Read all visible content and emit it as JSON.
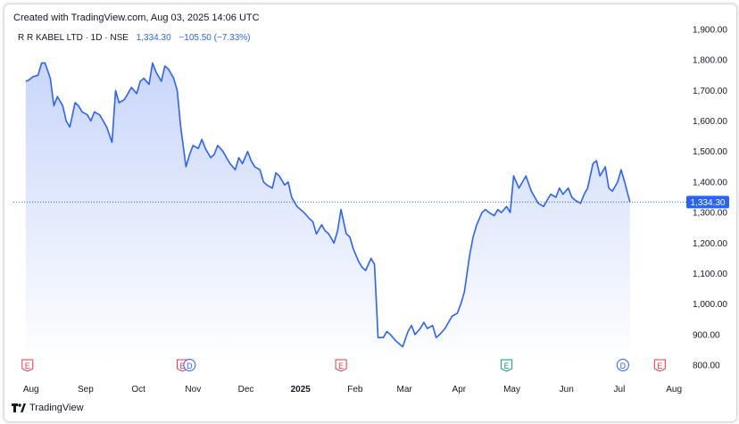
{
  "header": {
    "created_text": "Created with TradingView.com, Aug 03, 2025 14:06 UTC"
  },
  "legend": {
    "symbol": "R R KABEL LTD · 1D · NSE",
    "last": "1,334.30",
    "change": "−105.50 (−7.33%)"
  },
  "footer": {
    "brand": "TradingView"
  },
  "colors": {
    "line": "#2962ff",
    "fill_top": "#c9d6fb",
    "fill_bottom": "#ffffff",
    "price_tag": "#2962ff",
    "event_E_red": "#f23645",
    "event_E_green": "#089981",
    "event_D_blue": "#2962ff",
    "text": "#131722"
  },
  "chart_data": {
    "type": "area",
    "title": "",
    "xlabel": "",
    "ylabel": "",
    "ylim": [
      800,
      1900
    ],
    "y_ticks": [
      "1,900.00",
      "1,800.00",
      "1,700.00",
      "1,600.00",
      "1,500.00",
      "1,400.00",
      "1,300.00",
      "1,200.00",
      "1,100.00",
      "1,000.00",
      "900.00",
      "800.00"
    ],
    "x_ticks": [
      "Aug",
      "Sep",
      "Oct",
      "Nov",
      "Dec",
      "2025",
      "Feb",
      "Mar",
      "Apr",
      "May",
      "Jun",
      "Jul",
      "Aug"
    ],
    "x_ticks_dates": [
      "2024-08-01",
      "2024-09-01",
      "2024-10-01",
      "2024-11-01",
      "2024-12-01",
      "2025-01-01",
      "2025-02-01",
      "2025-03-01",
      "2025-04-01",
      "2025-05-01",
      "2025-06-01",
      "2025-07-01",
      "2025-08-01"
    ],
    "last_price_label": "1,334.30",
    "last_price": 1334.3,
    "series": [
      {
        "values": [
          [
            "2024-07-29",
            1730
          ],
          [
            "2024-07-31",
            1735
          ],
          [
            "2024-08-02",
            1745
          ],
          [
            "2024-08-05",
            1750
          ],
          [
            "2024-08-07",
            1790
          ],
          [
            "2024-08-09",
            1790
          ],
          [
            "2024-08-12",
            1740
          ],
          [
            "2024-08-14",
            1650
          ],
          [
            "2024-08-16",
            1680
          ],
          [
            "2024-08-19",
            1650
          ],
          [
            "2024-08-21",
            1600
          ],
          [
            "2024-08-23",
            1580
          ],
          [
            "2024-08-26",
            1660
          ],
          [
            "2024-08-28",
            1650
          ],
          [
            "2024-08-30",
            1630
          ],
          [
            "2024-09-02",
            1620
          ],
          [
            "2024-09-04",
            1600
          ],
          [
            "2024-09-06",
            1630
          ],
          [
            "2024-09-09",
            1620
          ],
          [
            "2024-09-11",
            1600
          ],
          [
            "2024-09-13",
            1580
          ],
          [
            "2024-09-16",
            1530
          ],
          [
            "2024-09-18",
            1700
          ],
          [
            "2024-09-20",
            1660
          ],
          [
            "2024-09-23",
            1670
          ],
          [
            "2024-09-25",
            1690
          ],
          [
            "2024-09-27",
            1710
          ],
          [
            "2024-09-30",
            1690
          ],
          [
            "2024-10-02",
            1730
          ],
          [
            "2024-10-04",
            1740
          ],
          [
            "2024-10-07",
            1720
          ],
          [
            "2024-10-09",
            1790
          ],
          [
            "2024-10-11",
            1760
          ],
          [
            "2024-10-14",
            1730
          ],
          [
            "2024-10-16",
            1780
          ],
          [
            "2024-10-18",
            1770
          ],
          [
            "2024-10-21",
            1740
          ],
          [
            "2024-10-23",
            1700
          ],
          [
            "2024-10-25",
            1580
          ],
          [
            "2024-10-28",
            1450
          ],
          [
            "2024-10-30",
            1490
          ],
          [
            "2024-11-01",
            1520
          ],
          [
            "2024-11-04",
            1510
          ],
          [
            "2024-11-06",
            1540
          ],
          [
            "2024-11-08",
            1510
          ],
          [
            "2024-11-11",
            1480
          ],
          [
            "2024-11-13",
            1490
          ],
          [
            "2024-11-15",
            1520
          ],
          [
            "2024-11-18",
            1500
          ],
          [
            "2024-11-20",
            1480
          ],
          [
            "2024-11-22",
            1460
          ],
          [
            "2024-11-25",
            1440
          ],
          [
            "2024-11-27",
            1480
          ],
          [
            "2024-11-29",
            1460
          ],
          [
            "2024-12-02",
            1500
          ],
          [
            "2024-12-04",
            1470
          ],
          [
            "2024-12-06",
            1450
          ],
          [
            "2024-12-09",
            1440
          ],
          [
            "2024-12-11",
            1400
          ],
          [
            "2024-12-13",
            1390
          ],
          [
            "2024-12-16",
            1380
          ],
          [
            "2024-12-18",
            1430
          ],
          [
            "2024-12-20",
            1420
          ],
          [
            "2024-12-23",
            1390
          ],
          [
            "2024-12-25",
            1400
          ],
          [
            "2024-12-27",
            1350
          ],
          [
            "2024-12-30",
            1320
          ],
          [
            "2025-01-01",
            1310
          ],
          [
            "2025-01-03",
            1300
          ],
          [
            "2025-01-06",
            1280
          ],
          [
            "2025-01-08",
            1270
          ],
          [
            "2025-01-10",
            1230
          ],
          [
            "2025-01-13",
            1260
          ],
          [
            "2025-01-15",
            1240
          ],
          [
            "2025-01-17",
            1230
          ],
          [
            "2025-01-20",
            1200
          ],
          [
            "2025-01-22",
            1240
          ],
          [
            "2025-01-24",
            1310
          ],
          [
            "2025-01-27",
            1230
          ],
          [
            "2025-01-29",
            1220
          ],
          [
            "2025-01-31",
            1180
          ],
          [
            "2025-02-03",
            1140
          ],
          [
            "2025-02-05",
            1120
          ],
          [
            "2025-02-07",
            1110
          ],
          [
            "2025-02-10",
            1150
          ],
          [
            "2025-02-12",
            1130
          ],
          [
            "2025-02-14",
            890
          ],
          [
            "2025-02-17",
            890
          ],
          [
            "2025-02-19",
            910
          ],
          [
            "2025-02-21",
            900
          ],
          [
            "2025-02-24",
            880
          ],
          [
            "2025-02-26",
            870
          ],
          [
            "2025-02-28",
            860
          ],
          [
            "2025-03-03",
            910
          ],
          [
            "2025-03-05",
            930
          ],
          [
            "2025-03-07",
            900
          ],
          [
            "2025-03-10",
            920
          ],
          [
            "2025-03-12",
            940
          ],
          [
            "2025-03-14",
            920
          ],
          [
            "2025-03-17",
            930
          ],
          [
            "2025-03-19",
            890
          ],
          [
            "2025-03-21",
            900
          ],
          [
            "2025-03-24",
            920
          ],
          [
            "2025-03-26",
            940
          ],
          [
            "2025-03-28",
            960
          ],
          [
            "2025-03-31",
            970
          ],
          [
            "2025-04-02",
            1000
          ],
          [
            "2025-04-04",
            1040
          ],
          [
            "2025-04-07",
            1160
          ],
          [
            "2025-04-09",
            1220
          ],
          [
            "2025-04-11",
            1260
          ],
          [
            "2025-04-14",
            1300
          ],
          [
            "2025-04-16",
            1310
          ],
          [
            "2025-04-18",
            1300
          ],
          [
            "2025-04-21",
            1290
          ],
          [
            "2025-04-23",
            1310
          ],
          [
            "2025-04-25",
            1300
          ],
          [
            "2025-04-28",
            1320
          ],
          [
            "2025-04-30",
            1300
          ],
          [
            "2025-05-02",
            1420
          ],
          [
            "2025-05-05",
            1380
          ],
          [
            "2025-05-07",
            1400
          ],
          [
            "2025-05-09",
            1420
          ],
          [
            "2025-05-12",
            1370
          ],
          [
            "2025-05-14",
            1350
          ],
          [
            "2025-05-16",
            1330
          ],
          [
            "2025-05-19",
            1320
          ],
          [
            "2025-05-21",
            1340
          ],
          [
            "2025-05-23",
            1360
          ],
          [
            "2025-05-26",
            1350
          ],
          [
            "2025-05-28",
            1380
          ],
          [
            "2025-05-30",
            1360
          ],
          [
            "2025-06-02",
            1380
          ],
          [
            "2025-06-04",
            1350
          ],
          [
            "2025-06-06",
            1340
          ],
          [
            "2025-06-09",
            1330
          ],
          [
            "2025-06-11",
            1360
          ],
          [
            "2025-06-13",
            1380
          ],
          [
            "2025-06-16",
            1460
          ],
          [
            "2025-06-18",
            1470
          ],
          [
            "2025-06-20",
            1420
          ],
          [
            "2025-06-23",
            1450
          ],
          [
            "2025-06-25",
            1380
          ],
          [
            "2025-06-27",
            1370
          ],
          [
            "2025-06-30",
            1400
          ],
          [
            "2025-07-02",
            1440
          ],
          [
            "2025-07-04",
            1400
          ],
          [
            "2025-07-07",
            1334.3
          ]
        ]
      }
    ],
    "events": [
      {
        "date": "2024-07-30",
        "letter": "E",
        "kind": "earnings",
        "color": "#f23645"
      },
      {
        "date": "2024-10-26",
        "letter": "E",
        "kind": "earnings",
        "color": "#f23645"
      },
      {
        "date": "2024-10-30",
        "letter": "D",
        "kind": "dividend",
        "color": "#2962ff"
      },
      {
        "date": "2025-01-24",
        "letter": "E",
        "kind": "earnings",
        "color": "#f23645"
      },
      {
        "date": "2025-04-28",
        "letter": "E",
        "kind": "earnings",
        "color": "#089981"
      },
      {
        "date": "2025-07-03",
        "letter": "D",
        "kind": "dividend",
        "color": "#2962ff"
      },
      {
        "date": "2025-07-24",
        "letter": "E",
        "kind": "earnings",
        "color": "#f23645"
      }
    ]
  }
}
